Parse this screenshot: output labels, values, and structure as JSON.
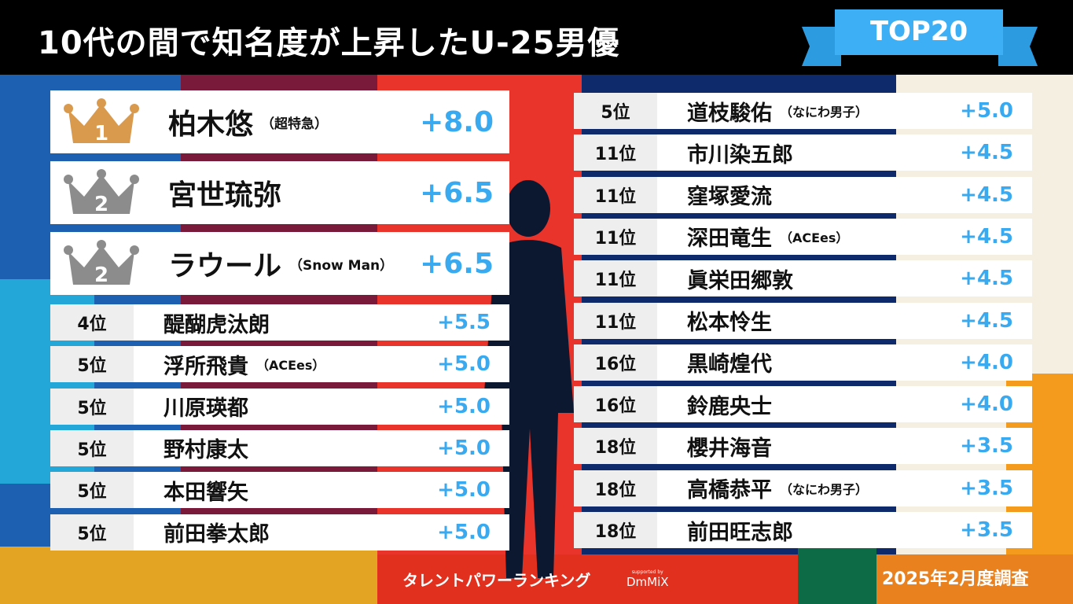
{
  "header": {
    "title": "10代の間で知名度が上昇したU-25男優",
    "badge": "TOP20"
  },
  "colors": {
    "value": "#3aaaf0",
    "gold": "#d99a4e",
    "silver": "#8c8c8c",
    "ribbon": "#3db0f5"
  },
  "top3": [
    {
      "rank": "1",
      "crown": "gold-crown",
      "name": "柏木悠",
      "group": "（超特急）",
      "value": "+8.0"
    },
    {
      "rank": "2",
      "crown": "silver-crown",
      "name": "宮世琉弥",
      "group": "",
      "value": "+6.5"
    },
    {
      "rank": "2",
      "crown": "silver-crown",
      "name": "ラウール",
      "group": "（Snow Man）",
      "value": "+6.5"
    }
  ],
  "left": [
    {
      "rank": "4位",
      "name": "醍醐虎汰朗",
      "group": "",
      "value": "+5.5"
    },
    {
      "rank": "5位",
      "name": "浮所飛貴",
      "group": "（ACEes）",
      "value": "+5.0"
    },
    {
      "rank": "5位",
      "name": "川原瑛都",
      "group": "",
      "value": "+5.0"
    },
    {
      "rank": "5位",
      "name": "野村康太",
      "group": "",
      "value": "+5.0"
    },
    {
      "rank": "5位",
      "name": "本田響矢",
      "group": "",
      "value": "+5.0"
    },
    {
      "rank": "5位",
      "name": "前田拳太郎",
      "group": "",
      "value": "+5.0"
    }
  ],
  "right": [
    {
      "rank": "5位",
      "name": "道枝駿佑",
      "group": "（なにわ男子）",
      "value": "+5.0"
    },
    {
      "rank": "11位",
      "name": "市川染五郎",
      "group": "",
      "value": "+4.5"
    },
    {
      "rank": "11位",
      "name": "窪塚愛流",
      "group": "",
      "value": "+4.5"
    },
    {
      "rank": "11位",
      "name": "深田竜生",
      "group": "（ACEes）",
      "value": "+4.5"
    },
    {
      "rank": "11位",
      "name": "眞栄田郷敦",
      "group": "",
      "value": "+4.5"
    },
    {
      "rank": "11位",
      "name": "松本怜生",
      "group": "",
      "value": "+4.5"
    },
    {
      "rank": "16位",
      "name": "黒崎煌代",
      "group": "",
      "value": "+4.0"
    },
    {
      "rank": "16位",
      "name": "鈴鹿央士",
      "group": "",
      "value": "+4.0"
    },
    {
      "rank": "18位",
      "name": "櫻井海音",
      "group": "",
      "value": "+3.5"
    },
    {
      "rank": "18位",
      "name": "高橋恭平",
      "group": "（なにわ男子）",
      "value": "+3.5"
    },
    {
      "rank": "18位",
      "name": "前田旺志郎",
      "group": "",
      "value": "+3.5"
    }
  ],
  "footer": {
    "logo": "タレントパワーランキング",
    "supported": "supported by",
    "sponsor": "DmMiX",
    "date": "2025年2月度調査"
  }
}
